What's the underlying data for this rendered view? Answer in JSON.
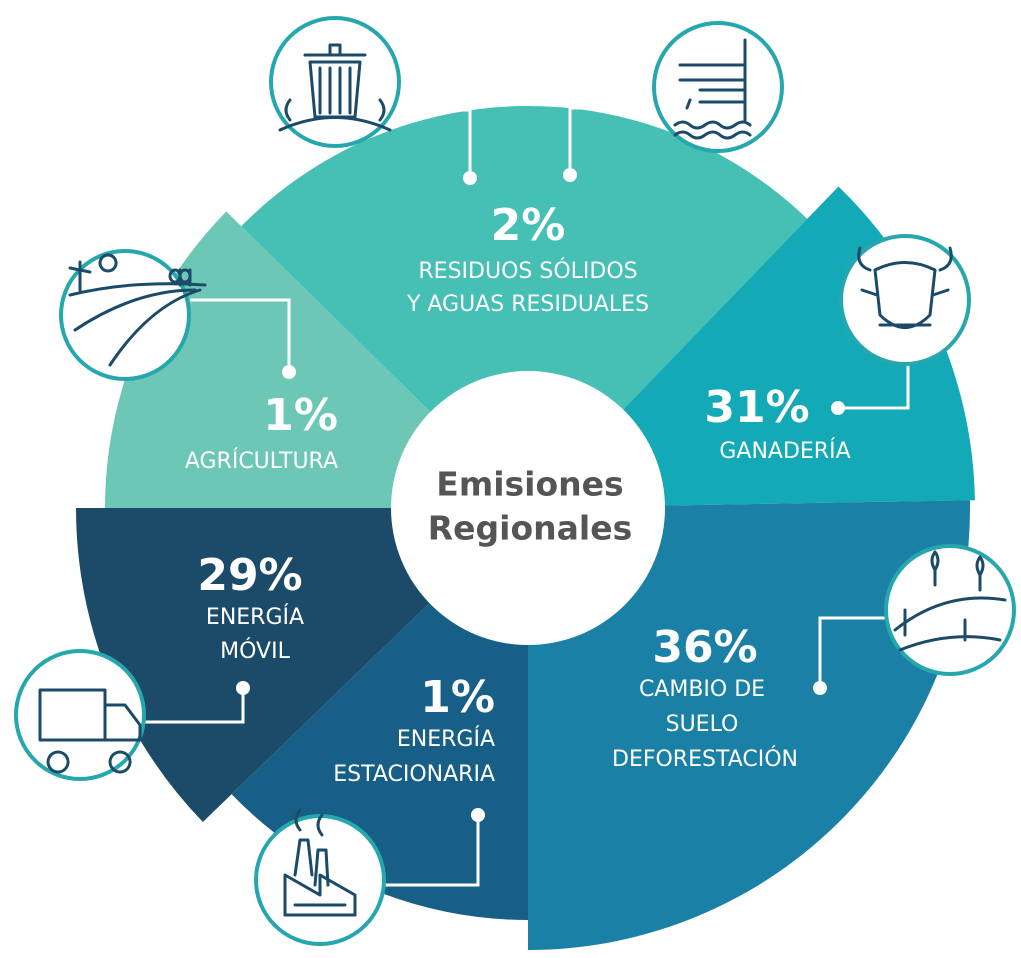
{
  "center": {
    "lines": [
      "Emisiones",
      "Regionales"
    ]
  },
  "segments": [
    {
      "percent": "2%",
      "lines": [
        "RESIDUOS SÓLIDOS",
        "Y AGUAS RESIDUALES"
      ]
    },
    {
      "percent": "31%",
      "lines": [
        "GANADERÍA"
      ]
    },
    {
      "percent": "36%",
      "lines": [
        "CAMBIO DE",
        "SUELO",
        "DEFORESTACIÓN"
      ]
    },
    {
      "percent": "1%",
      "lines": [
        "ENERGÍA",
        "ESTACIONARIA"
      ]
    },
    {
      "percent": "29%",
      "lines": [
        "ENERGÍA",
        "MÓVIL"
      ]
    },
    {
      "percent": "1%",
      "lines": [
        "AGRÍCULTURA"
      ]
    }
  ]
}
